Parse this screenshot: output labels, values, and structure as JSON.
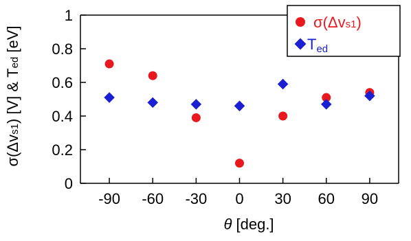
{
  "chart_data": {
    "type": "scatter",
    "x_ticks": [
      -90,
      -60,
      -30,
      0,
      30,
      60,
      90
    ],
    "y_ticks": [
      0,
      0.2,
      0.4,
      0.6,
      0.8,
      1
    ],
    "y_tick_labels": [
      "0",
      "0.2",
      "0.4",
      "0.6",
      "0.8",
      "1"
    ],
    "xlim": [
      -110,
      110
    ],
    "ylim": [
      0,
      1
    ],
    "xlabel": "θ  [deg.]",
    "ylabel": "σ(Δv_s1) [V] & T_ed [eV]",
    "grid": false,
    "legend_position": "top-right",
    "series": [
      {
        "name": "σ(Δv_s1)",
        "marker": "circle",
        "color": "#e8191e",
        "x": [
          -90,
          -60,
          -30,
          0,
          30,
          60,
          90
        ],
        "y": [
          0.71,
          0.64,
          0.39,
          0.12,
          0.4,
          0.51,
          0.54
        ]
      },
      {
        "name": "T_ed",
        "marker": "diamond",
        "color": "#1a1fd1",
        "x": [
          -90,
          -60,
          -30,
          0,
          30,
          60,
          90
        ],
        "y": [
          0.51,
          0.48,
          0.47,
          0.46,
          0.59,
          0.47,
          0.52
        ]
      }
    ]
  },
  "legend": {
    "sigma": {
      "prefix": "σ(Δv",
      "sub": "s1",
      "suffix": ")"
    },
    "ted": {
      "main": "T",
      "sub": "ed"
    }
  },
  "axes": {
    "ylabel_parts": {
      "p1": "σ(Δv",
      "p1_sub": "s1",
      "p2": ") [V] & T",
      "p2_sub": "ed",
      "p3": " [eV]"
    },
    "xlabel_parts": {
      "theta": "θ",
      "rest": " [deg.]"
    }
  }
}
